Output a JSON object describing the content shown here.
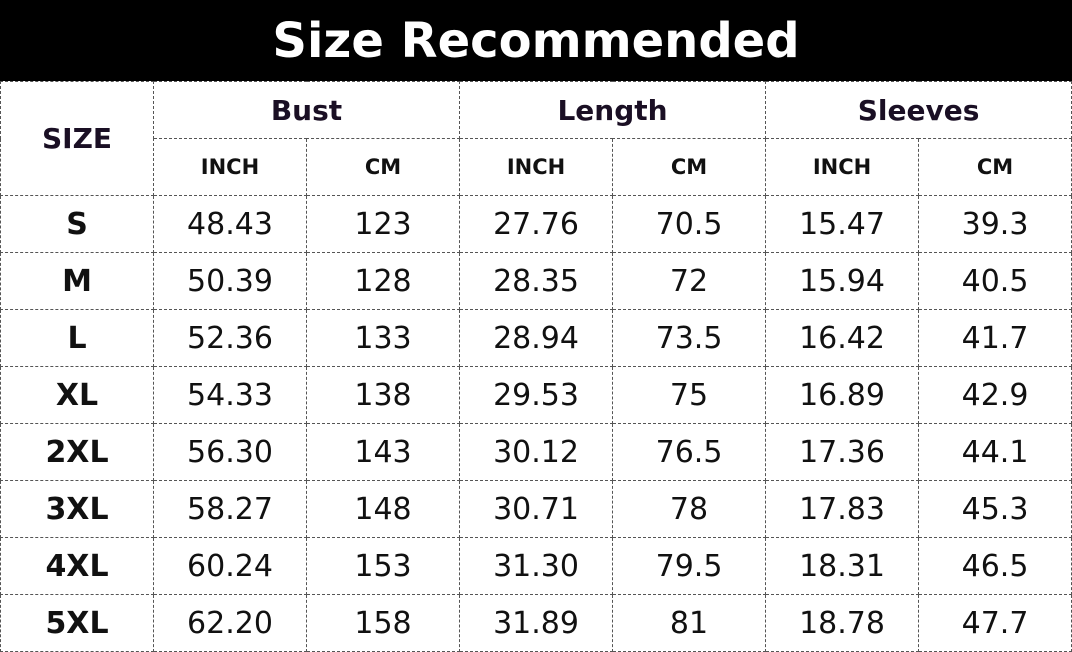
{
  "title": "Size Recommended",
  "table": {
    "size_header": "SIZE",
    "groups": [
      "Bust",
      "Length",
      "Sleeves"
    ],
    "units": [
      "INCH",
      "CM",
      "INCH",
      "CM",
      "INCH",
      "CM"
    ],
    "rows": [
      {
        "size": "S",
        "values": [
          "48.43",
          "123",
          "27.76",
          "70.5",
          "15.47",
          "39.3"
        ]
      },
      {
        "size": "M",
        "values": [
          "50.39",
          "128",
          "28.35",
          "72",
          "15.94",
          "40.5"
        ]
      },
      {
        "size": "L",
        "values": [
          "52.36",
          "133",
          "28.94",
          "73.5",
          "16.42",
          "41.7"
        ]
      },
      {
        "size": "XL",
        "values": [
          "54.33",
          "138",
          "29.53",
          "75",
          "16.89",
          "42.9"
        ]
      },
      {
        "size": "2XL",
        "values": [
          "56.30",
          "143",
          "30.12",
          "76.5",
          "17.36",
          "44.1"
        ]
      },
      {
        "size": "3XL",
        "values": [
          "58.27",
          "148",
          "30.71",
          "78",
          "17.83",
          "45.3"
        ]
      },
      {
        "size": "4XL",
        "values": [
          "60.24",
          "153",
          "31.30",
          "79.5",
          "18.31",
          "46.5"
        ]
      },
      {
        "size": "5XL",
        "values": [
          "62.20",
          "158",
          "31.89",
          "81",
          "18.78",
          "47.7"
        ]
      }
    ]
  }
}
